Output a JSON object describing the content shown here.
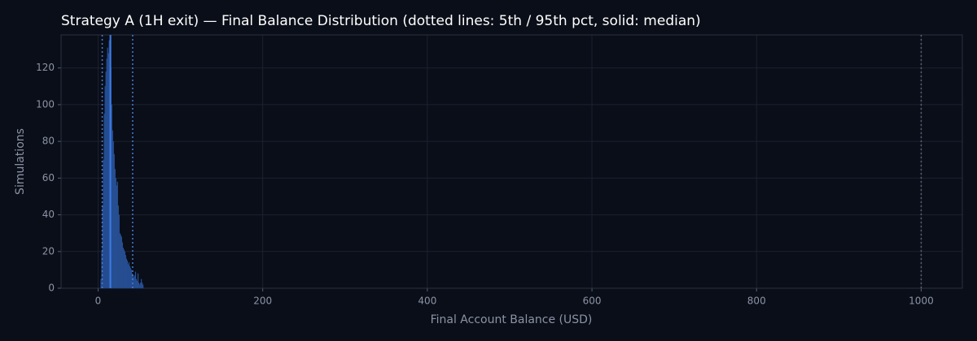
{
  "chart_data": {
    "type": "histogram",
    "title": "Strategy A (1H exit) — Final Balance Distribution (dotted lines: 5th / 95th pct, solid: median)",
    "xlabel": "Final Account Balance (USD)",
    "ylabel": "Simulations",
    "bins": [
      3,
      4,
      5,
      6,
      7,
      8,
      9,
      10,
      11,
      12,
      13,
      14,
      15,
      16,
      17,
      18,
      19,
      20,
      21,
      22,
      23,
      24,
      25,
      26,
      27,
      28,
      29,
      30,
      31,
      32,
      33,
      34,
      35,
      36,
      37,
      38,
      39,
      40,
      41,
      42,
      43,
      44,
      45,
      46,
      47,
      48,
      49,
      50,
      51,
      52,
      53,
      54,
      55,
      56
    ],
    "values": [
      5,
      20,
      45,
      70,
      95,
      110,
      118,
      125,
      131,
      128,
      135,
      138,
      120,
      100,
      86,
      80,
      73,
      65,
      60,
      56,
      58,
      45,
      40,
      30,
      29,
      28,
      25,
      22,
      21,
      20,
      18,
      16,
      15,
      13,
      14,
      12,
      11,
      10,
      8,
      7,
      6,
      7,
      9,
      5,
      4,
      8,
      3,
      2,
      3,
      5,
      3,
      2,
      0
    ],
    "color": "#2d5aa6",
    "xlim": [
      -45,
      1050
    ],
    "ylim": [
      0,
      138
    ],
    "xticks": [
      0,
      200,
      400,
      600,
      800,
      1000
    ],
    "yticks": [
      0,
      20,
      40,
      60,
      80,
      100,
      120
    ],
    "grid": true,
    "vlines": [
      {
        "value": 5,
        "style": "dotted",
        "color": "#4a7bd4"
      },
      {
        "value": 15,
        "style": "solid",
        "color": "#3d7ce6"
      },
      {
        "value": 42,
        "style": "dotted",
        "color": "#4a7bd4"
      },
      {
        "value": 1000,
        "style": "dotted",
        "color": "#5a6072"
      }
    ]
  }
}
